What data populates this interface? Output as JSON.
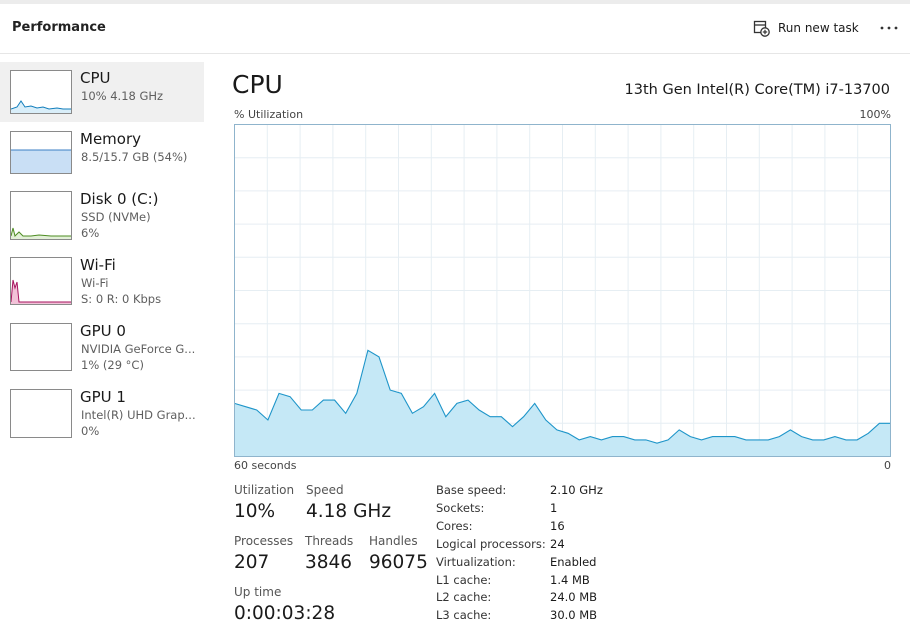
{
  "header": {
    "title": "Performance",
    "run_new_task": "Run new task"
  },
  "sidebar": [
    {
      "name": "CPU",
      "lines": [
        "10% 4.18 GHz"
      ]
    },
    {
      "name": "Memory",
      "lines": [
        "8.5/15.7 GB (54%)"
      ]
    },
    {
      "name": "Disk 0 (C:)",
      "lines": [
        "SSD (NVMe)",
        "6%"
      ]
    },
    {
      "name": "Wi-Fi",
      "lines": [
        "Wi-Fi",
        "S: 0 R: 0 Kbps"
      ]
    },
    {
      "name": "GPU 0",
      "lines": [
        "NVIDIA GeForce G...",
        "1% (29 °C)"
      ]
    },
    {
      "name": "GPU 1",
      "lines": [
        "Intel(R) UHD Grap...",
        "0%"
      ]
    }
  ],
  "main": {
    "title": "CPU",
    "processor": "13th Gen Intel(R) Core(TM) i7-13700",
    "graph": {
      "y_label": "% Utilization",
      "ytop": {
        "value": 100,
        "label": "100%"
      },
      "x_start": "60 seconds",
      "x_end": 0,
      "values": [
        16,
        15,
        14,
        11,
        19,
        18,
        14,
        14,
        17,
        17,
        13,
        19,
        32,
        30,
        20,
        19,
        13,
        15,
        19,
        12,
        16,
        17,
        14,
        12,
        12,
        9,
        12,
        16,
        11,
        8,
        7,
        5,
        6,
        5,
        6,
        6,
        5,
        5,
        4,
        5,
        8,
        6,
        5,
        6,
        6,
        6,
        5,
        5,
        5,
        6,
        8,
        6,
        5,
        5,
        6,
        5,
        5,
        7,
        10,
        10
      ]
    }
  },
  "stats": [
    {
      "label": "Utilization",
      "value": "10%"
    },
    {
      "label": "Speed",
      "value": "4.18 GHz"
    },
    {
      "label": "Processes",
      "value": 207
    },
    {
      "label": "Threads",
      "value": 3846
    },
    {
      "label": "Handles",
      "value": 96075
    },
    {
      "label": "Up time",
      "value": "0:00:03:28"
    }
  ],
  "specs": [
    {
      "label": "Base speed:",
      "value": "2.10 GHz"
    },
    {
      "label": "Sockets:",
      "value": 1
    },
    {
      "label": "Cores:",
      "value": 16
    },
    {
      "label": "Logical processors:",
      "value": 24
    },
    {
      "label": "Virtualization:",
      "value": "Enabled"
    },
    {
      "label": "L1 cache:",
      "value": "1.4 MB"
    },
    {
      "label": "L2 cache:",
      "value": "24.0 MB"
    },
    {
      "label": "L3 cache:",
      "value": "30.0 MB"
    }
  ]
}
